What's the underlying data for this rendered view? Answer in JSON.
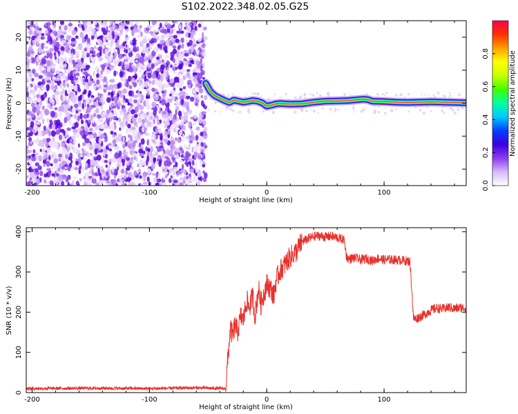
{
  "figure_title": "S102.2022.348.02.05.G25",
  "chart_data": [
    {
      "type": "heatmap",
      "title": "",
      "xlabel": "Height of straight line (km)",
      "ylabel": "Frequency (Hz)",
      "xlim": [
        -205,
        170
      ],
      "ylim": [
        -25,
        25
      ],
      "xticks": [
        "-200",
        "-100",
        "0",
        "100"
      ],
      "xtick_values": [
        -200,
        -100,
        0,
        100
      ],
      "yticks": [
        "-20",
        "-10",
        "0",
        "10",
        "20"
      ],
      "ytick_values": [
        -20,
        -10,
        0,
        10,
        20
      ],
      "noise_region_x": [
        -205,
        -52
      ],
      "signal_track": {
        "x": [
          -52,
          -48,
          -44,
          -40,
          -36,
          -32,
          -28,
          -24,
          -20,
          -16,
          -12,
          -8,
          -4,
          0,
          4,
          8,
          12,
          16,
          20,
          30,
          40,
          50,
          60,
          70,
          76,
          82,
          86,
          90,
          100,
          110,
          120,
          130,
          140,
          150,
          160,
          170
        ],
        "y": [
          6,
          3.5,
          2.2,
          1.5,
          0.8,
          0.2,
          0.9,
          0.6,
          0.3,
          0.5,
          0.8,
          0.6,
          0.1,
          -0.9,
          -0.6,
          -0.2,
          -0.1,
          -0.2,
          -0.3,
          -0.2,
          0.3,
          0.6,
          0.7,
          0.8,
          1.0,
          1.2,
          1.1,
          0.6,
          0.5,
          0.3,
          0.2,
          0.3,
          0.4,
          0.3,
          0.2,
          0.1
        ]
      },
      "grid": false,
      "colorbar": {
        "label": "Normalized spectral amplitude",
        "range": [
          0,
          1
        ],
        "ticks": [
          "0.0",
          "0.2",
          "0.4",
          "0.6",
          "0.8"
        ],
        "tick_values": [
          0,
          0.2,
          0.4,
          0.6,
          0.8
        ],
        "colors": [
          "#ffffff",
          "#d8b8f8",
          "#8a3cf0",
          "#3a00e0",
          "#0040ff",
          "#00c8ff",
          "#00ffa0",
          "#40ff00",
          "#c8ff00",
          "#ffff00",
          "#ffa000",
          "#ff3000",
          "#ff0050"
        ]
      }
    },
    {
      "type": "line",
      "title": "",
      "xlabel": "Height of straight line (km)",
      "ylabel": "SNR (10 * v/v)",
      "xlim": [
        -205,
        170
      ],
      "ylim": [
        0,
        410
      ],
      "xticks": [
        "-200",
        "-100",
        "0",
        "100"
      ],
      "xtick_values": [
        -200,
        -100,
        0,
        100
      ],
      "yticks": [
        "0",
        "100",
        "200",
        "300",
        "400"
      ],
      "ytick_values": [
        0,
        100,
        200,
        300,
        400
      ],
      "grid": false,
      "series_color": "#e8302a",
      "series": [
        {
          "x": [
            -205,
            -150,
            -100,
            -60,
            -35,
            -33,
            -31,
            -29,
            -27,
            -25,
            -22,
            -20,
            -17,
            -15,
            -12,
            -10,
            -7,
            -5,
            -2,
            0,
            3,
            6,
            8,
            11,
            13,
            16,
            18,
            21,
            23,
            25,
            28,
            30,
            35,
            40,
            45,
            50,
            55,
            60,
            66,
            68,
            70,
            75,
            80,
            85,
            90,
            95,
            100,
            105,
            110,
            115,
            122,
            124,
            125,
            127,
            130,
            135,
            140,
            145,
            150,
            155,
            160,
            165,
            170
          ],
          "y": [
            10,
            11,
            10,
            12,
            10,
            90,
            160,
            140,
            170,
            150,
            190,
            180,
            230,
            210,
            240,
            190,
            260,
            220,
            250,
            270,
            260,
            240,
            280,
            300,
            310,
            320,
            330,
            340,
            345,
            350,
            365,
            375,
            382,
            388,
            390,
            387,
            389,
            385,
            380,
            338,
            332,
            335,
            330,
            333,
            328,
            334,
            330,
            331,
            330,
            329,
            326,
            240,
            185,
            183,
            188,
            195,
            205,
            210,
            208,
            212,
            209,
            211,
            210
          ]
        }
      ]
    }
  ]
}
